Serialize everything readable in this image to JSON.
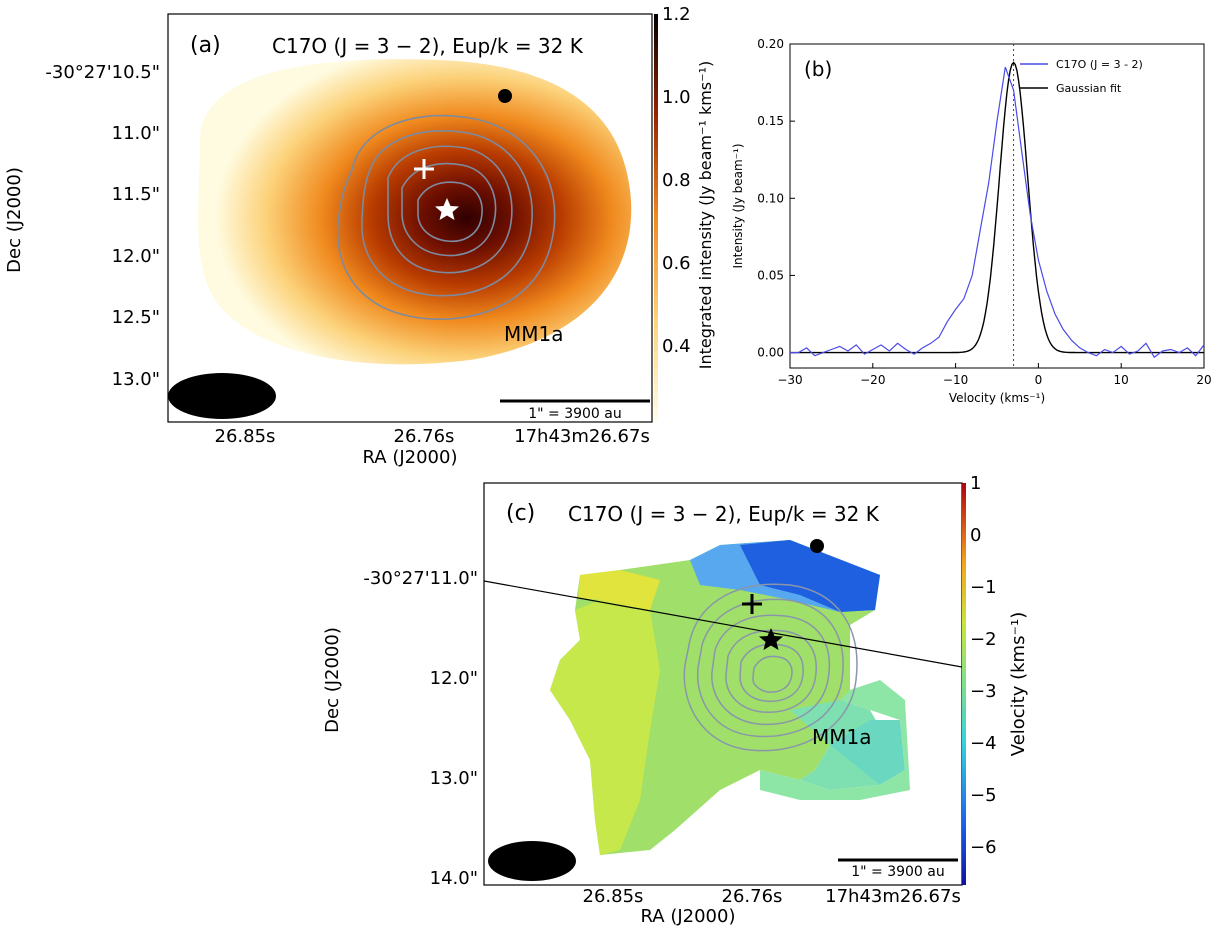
{
  "panel_a": {
    "label": "(a)",
    "title": "C17O (J = 3 − 2), Eup/k = 32 K",
    "ylabel": "Dec (J2000)",
    "xlabel": "RA (J2000)",
    "yticks": [
      "-30°27'10.5\"",
      "11.0\"",
      "11.5\"",
      "12.0\"",
      "12.5\"",
      "13.0\""
    ],
    "xticks": [
      "26.85s",
      "26.76s",
      "17h43m26.67s"
    ],
    "colorbar_label": "Integrated intensity (Jy beam⁻¹ kms⁻¹)",
    "colorbar_ticks": [
      "1.2",
      "1.0",
      "0.8",
      "0.6",
      "0.4"
    ],
    "source_label": "MM1a",
    "scalebar_label": "1\" = 3900 au"
  },
  "panel_b": {
    "label": "(b)",
    "xlabel": "Velocity (kms⁻¹)",
    "ylabel": "Intensity (Jy beam⁻¹)",
    "legend": [
      "C17O (J = 3 - 2)",
      "Gaussian fit"
    ],
    "colors": {
      "spectrum": "#4a4ae8",
      "fit": "#000000"
    }
  },
  "panel_c": {
    "label": "(c)",
    "title": "C17O (J = 3 − 2), Eup/k = 32 K",
    "ylabel": "Dec (J2000)",
    "xlabel": "RA (J2000)",
    "yticks": [
      "-30°27'11.0\"",
      "12.0\"",
      "13.0\"",
      "14.0\""
    ],
    "xticks": [
      "26.85s",
      "26.76s",
      "17h43m26.67s"
    ],
    "colorbar_label": "Velocity (kms⁻¹)",
    "colorbar_ticks": [
      "1",
      "0",
      "−1",
      "−2",
      "−3",
      "−4",
      "−5",
      "−6"
    ],
    "source_label": "MM1a",
    "scalebar_label": "1\" = 3900 au"
  },
  "chart_data": [
    {
      "type": "heatmap",
      "panel": "a",
      "quantity": "Integrated intensity",
      "colorbar_range": [
        0.3,
        1.2
      ],
      "peak_value": 1.2
    },
    {
      "type": "line",
      "panel": "b",
      "xlim": [
        -30,
        20
      ],
      "ylim": [
        -0.01,
        0.2
      ],
      "xticks": [
        -30,
        -20,
        -10,
        0,
        10,
        20
      ],
      "yticks": [
        0.0,
        0.05,
        0.1,
        0.15,
        0.2
      ],
      "vline_x": -3,
      "series": [
        {
          "name": "C17O (J = 3 - 2)",
          "x": [
            -30,
            -29,
            -28,
            -27,
            -26,
            -25,
            -24,
            -23,
            -22,
            -21,
            -20,
            -19,
            -18,
            -17,
            -16,
            -15,
            -14,
            -13,
            -12,
            -11,
            -10,
            -9,
            -8,
            -7,
            -6,
            -5,
            -4,
            -3,
            -2,
            -1,
            0,
            1,
            2,
            3,
            4,
            5,
            6,
            7,
            8,
            9,
            10,
            11,
            12,
            13,
            14,
            15,
            16,
            17,
            18,
            19,
            20
          ],
          "y": [
            0.0,
            0.0,
            0.003,
            -0.002,
            0.0,
            0.002,
            0.004,
            0.001,
            0.005,
            -0.001,
            0.002,
            0.005,
            0.001,
            0.006,
            0.002,
            -0.001,
            0.003,
            0.006,
            0.01,
            0.02,
            0.028,
            0.035,
            0.05,
            0.08,
            0.11,
            0.15,
            0.185,
            0.17,
            0.13,
            0.09,
            0.06,
            0.04,
            0.025,
            0.015,
            0.008,
            0.003,
            0.0,
            -0.002,
            0.002,
            0.0,
            0.004,
            -0.001,
            0.001,
            0.006,
            -0.003,
            0.001,
            0.002,
            0.0,
            0.003,
            -0.002,
            0.005
          ]
        },
        {
          "name": "Gaussian fit",
          "mean": -3,
          "sigma": 1.7,
          "amplitude": 0.188
        }
      ]
    },
    {
      "type": "heatmap",
      "panel": "c",
      "quantity": "Velocity",
      "colorbar_range": [
        -6.7,
        1.0
      ]
    }
  ]
}
